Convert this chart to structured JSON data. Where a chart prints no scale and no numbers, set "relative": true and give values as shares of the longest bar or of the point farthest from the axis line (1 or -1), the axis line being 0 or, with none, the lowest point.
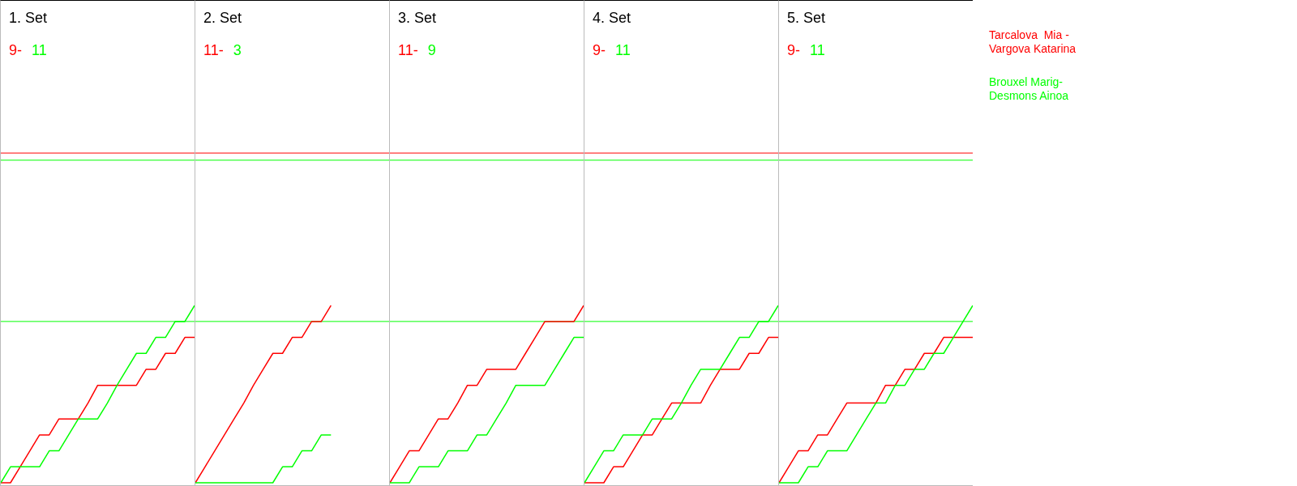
{
  "chart_data": [
    {
      "type": "line",
      "title": "1. Set",
      "annotations": [
        "9-",
        "11"
      ],
      "relative": true,
      "categories": [
        null,
        null,
        null,
        null,
        null,
        null,
        null,
        null,
        null,
        null,
        null,
        null,
        null,
        null,
        null,
        null,
        null,
        null,
        null,
        null,
        null
      ],
      "ref_lines": [
        {
          "axis": "y",
          "value": 0.91,
          "color": "#00ff00"
        },
        {
          "axis": "y",
          "value": 1.82,
          "color": "#00ff00"
        },
        {
          "axis": "y",
          "value": 1.86,
          "color": "#ff0000"
        }
      ],
      "series": [
        {
          "color": "#ff0000",
          "values": [
            0,
            0,
            0.09,
            0.18,
            0.27,
            0.27,
            0.36,
            0.36,
            0.36,
            0.45,
            0.55,
            0.55,
            0.55,
            0.55,
            0.55,
            0.64,
            0.64,
            0.73,
            0.73,
            0.82,
            0.82
          ]
        },
        {
          "color": "#00ff00",
          "values": [
            0,
            0.09,
            0.09,
            0.09,
            0.09,
            0.18,
            0.18,
            0.27,
            0.36,
            0.36,
            0.36,
            0.45,
            0.55,
            0.64,
            0.73,
            0.73,
            0.82,
            0.82,
            0.91,
            0.91,
            1
          ]
        }
      ]
    },
    {
      "type": "line",
      "title": "2. Set",
      "annotations": [
        "11-",
        "3"
      ],
      "relative": true,
      "categories": [
        null,
        null,
        null,
        null,
        null,
        null,
        null,
        null,
        null,
        null,
        null,
        null,
        null,
        null,
        null,
        null,
        null,
        null,
        null,
        null,
        null
      ],
      "ref_lines": [
        {
          "axis": "y",
          "value": 0.91,
          "color": "#00ff00"
        },
        {
          "axis": "y",
          "value": 1.82,
          "color": "#00ff00"
        },
        {
          "axis": "y",
          "value": 1.86,
          "color": "#ff0000"
        }
      ],
      "series": [
        {
          "color": "#ff0000",
          "values": [
            0,
            0.09,
            0.18,
            0.27,
            0.36,
            0.45,
            0.55,
            0.64,
            0.73,
            0.73,
            0.82,
            0.82,
            0.91,
            0.91,
            1,
            null,
            null,
            null,
            null,
            null,
            null
          ]
        },
        {
          "color": "#00ff00",
          "values": [
            0,
            0,
            0,
            0,
            0,
            0,
            0,
            0,
            0,
            0.09,
            0.09,
            0.18,
            0.18,
            0.27,
            0.27,
            null,
            null,
            null,
            null,
            null,
            null
          ]
        }
      ]
    },
    {
      "type": "line",
      "title": "3. Set",
      "annotations": [
        "11-",
        "9"
      ],
      "relative": true,
      "categories": [
        null,
        null,
        null,
        null,
        null,
        null,
        null,
        null,
        null,
        null,
        null,
        null,
        null,
        null,
        null,
        null,
        null,
        null,
        null,
        null,
        null
      ],
      "ref_lines": [
        {
          "axis": "y",
          "value": 0.91,
          "color": "#00ff00"
        },
        {
          "axis": "y",
          "value": 1.82,
          "color": "#00ff00"
        },
        {
          "axis": "y",
          "value": 1.86,
          "color": "#ff0000"
        }
      ],
      "series": [
        {
          "color": "#ff0000",
          "values": [
            0,
            0.09,
            0.18,
            0.18,
            0.27,
            0.36,
            0.36,
            0.45,
            0.55,
            0.55,
            0.64,
            0.64,
            0.64,
            0.64,
            0.73,
            0.82,
            0.91,
            0.91,
            0.91,
            0.91,
            1
          ]
        },
        {
          "color": "#00ff00",
          "values": [
            0,
            0,
            0,
            0.09,
            0.09,
            0.09,
            0.18,
            0.18,
            0.18,
            0.27,
            0.27,
            0.36,
            0.45,
            0.55,
            0.55,
            0.55,
            0.55,
            0.64,
            0.73,
            0.82,
            0.82
          ]
        }
      ]
    },
    {
      "type": "line",
      "title": "4. Set",
      "annotations": [
        "9-",
        "11"
      ],
      "relative": true,
      "categories": [
        null,
        null,
        null,
        null,
        null,
        null,
        null,
        null,
        null,
        null,
        null,
        null,
        null,
        null,
        null,
        null,
        null,
        null,
        null,
        null,
        null
      ],
      "ref_lines": [
        {
          "axis": "y",
          "value": 0.91,
          "color": "#00ff00"
        },
        {
          "axis": "y",
          "value": 1.82,
          "color": "#00ff00"
        },
        {
          "axis": "y",
          "value": 1.86,
          "color": "#ff0000"
        }
      ],
      "series": [
        {
          "color": "#ff0000",
          "values": [
            0,
            0,
            0,
            0.09,
            0.09,
            0.18,
            0.27,
            0.27,
            0.36,
            0.45,
            0.45,
            0.45,
            0.45,
            0.55,
            0.64,
            0.64,
            0.64,
            0.73,
            0.73,
            0.82,
            0.82
          ]
        },
        {
          "color": "#00ff00",
          "values": [
            0,
            0.09,
            0.18,
            0.18,
            0.27,
            0.27,
            0.27,
            0.36,
            0.36,
            0.36,
            0.45,
            0.55,
            0.64,
            0.64,
            0.64,
            0.73,
            0.82,
            0.82,
            0.91,
            0.91,
            1
          ]
        }
      ]
    },
    {
      "type": "line",
      "title": "5. Set",
      "annotations": [
        "9-",
        "11"
      ],
      "relative": true,
      "categories": [
        null,
        null,
        null,
        null,
        null,
        null,
        null,
        null,
        null,
        null,
        null,
        null,
        null,
        null,
        null,
        null,
        null,
        null,
        null,
        null,
        null
      ],
      "ref_lines": [
        {
          "axis": "y",
          "value": 0.91,
          "color": "#00ff00"
        },
        {
          "axis": "y",
          "value": 1.82,
          "color": "#00ff00"
        },
        {
          "axis": "y",
          "value": 1.86,
          "color": "#ff0000"
        }
      ],
      "series": [
        {
          "name": "Tarcalova  Mia - Vargova Katarina",
          "color": "#ff0000",
          "values": [
            0,
            0.09,
            0.18,
            0.18,
            0.27,
            0.27,
            0.36,
            0.45,
            0.45,
            0.45,
            0.45,
            0.55,
            0.55,
            0.64,
            0.64,
            0.73,
            0.73,
            0.82,
            0.82,
            0.82,
            0.82
          ]
        },
        {
          "name": "Brouxel Marig- Desmons Ainoa",
          "color": "#00ff00",
          "values": [
            0,
            0,
            0,
            0.09,
            0.09,
            0.18,
            0.18,
            0.18,
            0.27,
            0.36,
            0.45,
            0.45,
            0.55,
            0.55,
            0.64,
            0.64,
            0.73,
            0.73,
            0.82,
            0.91,
            1
          ]
        }
      ]
    }
  ]
}
